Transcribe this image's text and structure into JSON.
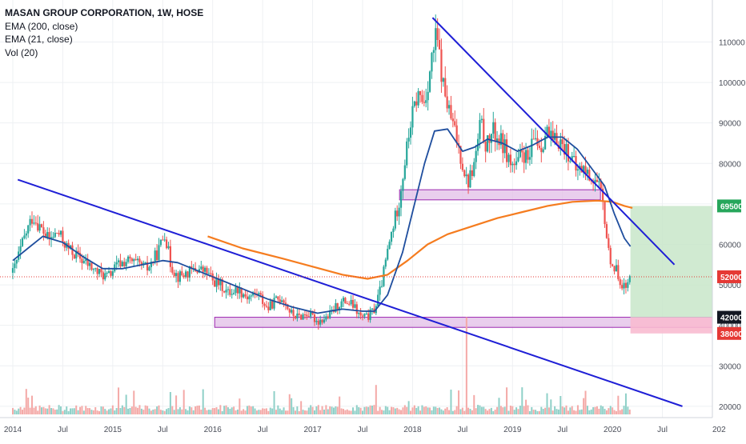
{
  "chart_data": {
    "type": "candlestick",
    "title": "MASAN GROUP CORPORATION, 1W, HOSE",
    "indicators": [
      "EMA (200, close)",
      "EMA (21, close)",
      "Vol (20)"
    ],
    "x_ticks": [
      "2014",
      "Jul",
      "2015",
      "Jul",
      "2016",
      "Jul",
      "2017",
      "Jul",
      "2018",
      "Jul",
      "2019",
      "Jul",
      "2020",
      "Jul",
      "202"
    ],
    "y_ticks": [
      20000,
      30000,
      40000,
      50000,
      60000,
      70000,
      80000,
      90000,
      100000,
      110000
    ],
    "ylim": [
      18000,
      118000
    ],
    "xlim": [
      2014.0,
      2021.0
    ],
    "price_labels": [
      {
        "value": 69500,
        "label": "69500",
        "color": "#26a65b"
      },
      {
        "value": 52000,
        "label": "52000",
        "color": "#e53935"
      },
      {
        "value": 42000,
        "label": "42000",
        "color": "#131722"
      },
      {
        "value": 38000,
        "label": "38000",
        "color": "#e53935"
      }
    ],
    "current_price": 52000,
    "colors": {
      "up": "#26a69a",
      "down": "#ef5350",
      "ema200": "#f57c1f",
      "ema21": "#1f4e9e",
      "trendline": "#1f1fd6",
      "zone_fill": "#e1bee7",
      "zone_stroke": "#9c27b0",
      "profit": "#c8e6c9",
      "loss": "#f8bbd0"
    },
    "price_path": [
      [
        2014.0,
        53000
      ],
      [
        2014.12,
        62000
      ],
      [
        2014.2,
        67000
      ],
      [
        2014.28,
        64000
      ],
      [
        2014.36,
        61000
      ],
      [
        2014.45,
        63000
      ],
      [
        2014.55,
        59000
      ],
      [
        2014.65,
        57000
      ],
      [
        2014.75,
        55000
      ],
      [
        2014.85,
        53000
      ],
      [
        2014.95,
        52000
      ],
      [
        2015.05,
        55000
      ],
      [
        2015.15,
        56000
      ],
      [
        2015.25,
        55000
      ],
      [
        2015.35,
        54000
      ],
      [
        2015.45,
        58000
      ],
      [
        2015.52,
        63000
      ],
      [
        2015.58,
        55000
      ],
      [
        2015.65,
        52000
      ],
      [
        2015.75,
        53000
      ],
      [
        2015.85,
        54000
      ],
      [
        2015.95,
        53000
      ],
      [
        2016.0,
        51000
      ],
      [
        2016.08,
        50000
      ],
      [
        2016.15,
        48000
      ],
      [
        2016.25,
        49000
      ],
      [
        2016.35,
        47000
      ],
      [
        2016.45,
        48000
      ],
      [
        2016.55,
        44000
      ],
      [
        2016.62,
        46000
      ],
      [
        2016.7,
        47000
      ],
      [
        2016.78,
        43000
      ],
      [
        2016.85,
        42000
      ],
      [
        2016.95,
        43000
      ],
      [
        2017.05,
        41000
      ],
      [
        2017.15,
        42000
      ],
      [
        2017.25,
        45000
      ],
      [
        2017.32,
        46000
      ],
      [
        2017.4,
        45000
      ],
      [
        2017.48,
        42000
      ],
      [
        2017.55,
        42000
      ],
      [
        2017.62,
        44000
      ],
      [
        2017.68,
        49000
      ],
      [
        2017.74,
        57000
      ],
      [
        2017.8,
        64000
      ],
      [
        2017.86,
        70000
      ],
      [
        2017.92,
        80000
      ],
      [
        2017.98,
        90000
      ],
      [
        2018.05,
        97000
      ],
      [
        2018.12,
        95000
      ],
      [
        2018.18,
        104000
      ],
      [
        2018.24,
        112000
      ],
      [
        2018.3,
        100000
      ],
      [
        2018.36,
        93000
      ],
      [
        2018.42,
        88000
      ],
      [
        2018.48,
        82000
      ],
      [
        2018.55,
        75000
      ],
      [
        2018.62,
        80000
      ],
      [
        2018.68,
        90000
      ],
      [
        2018.74,
        84000
      ],
      [
        2018.8,
        88000
      ],
      [
        2018.86,
        86000
      ],
      [
        2018.92,
        84000
      ],
      [
        2018.98,
        80000
      ],
      [
        2019.04,
        79000
      ],
      [
        2019.1,
        83000
      ],
      [
        2019.16,
        80000
      ],
      [
        2019.22,
        87000
      ],
      [
        2019.28,
        84000
      ],
      [
        2019.34,
        88000
      ],
      [
        2019.4,
        85000
      ],
      [
        2019.46,
        86000
      ],
      [
        2019.52,
        84000
      ],
      [
        2019.58,
        82000
      ],
      [
        2019.64,
        78000
      ],
      [
        2019.7,
        79000
      ],
      [
        2019.76,
        77000
      ],
      [
        2019.82,
        76000
      ],
      [
        2019.88,
        73000
      ],
      [
        2019.92,
        67000
      ],
      [
        2019.96,
        58000
      ],
      [
        2020.0,
        55000
      ],
      [
        2020.05,
        53000
      ],
      [
        2020.1,
        50000
      ],
      [
        2020.14,
        49000
      ],
      [
        2020.18,
        52000
      ]
    ],
    "ema200_path": [
      [
        2015.95,
        62000
      ],
      [
        2016.3,
        59000
      ],
      [
        2016.7,
        56500
      ],
      [
        2017.0,
        54500
      ],
      [
        2017.3,
        52500
      ],
      [
        2017.55,
        51500
      ],
      [
        2017.75,
        52500
      ],
      [
        2017.95,
        56000
      ],
      [
        2018.15,
        60000
      ],
      [
        2018.35,
        62500
      ],
      [
        2018.6,
        64500
      ],
      [
        2018.85,
        66500
      ],
      [
        2019.1,
        68000
      ],
      [
        2019.35,
        69500
      ],
      [
        2019.6,
        70500
      ],
      [
        2019.85,
        70800
      ],
      [
        2020.0,
        70500
      ],
      [
        2020.12,
        69500
      ],
      [
        2020.2,
        69000
      ]
    ],
    "ema21_path": [
      [
        2014.0,
        56000
      ],
      [
        2014.15,
        59000
      ],
      [
        2014.3,
        62000
      ],
      [
        2014.5,
        60500
      ],
      [
        2014.7,
        57000
      ],
      [
        2014.9,
        54000
      ],
      [
        2015.1,
        54000
      ],
      [
        2015.3,
        55000
      ],
      [
        2015.5,
        56000
      ],
      [
        2015.65,
        55500
      ],
      [
        2015.85,
        53500
      ],
      [
        2016.05,
        51500
      ],
      [
        2016.3,
        49000
      ],
      [
        2016.55,
        46500
      ],
      [
        2016.8,
        44500
      ],
      [
        2017.05,
        43000
      ],
      [
        2017.3,
        44000
      ],
      [
        2017.5,
        43500
      ],
      [
        2017.62,
        43500
      ],
      [
        2017.75,
        47500
      ],
      [
        2017.9,
        58000
      ],
      [
        2018.0,
        68000
      ],
      [
        2018.12,
        80000
      ],
      [
        2018.22,
        88000
      ],
      [
        2018.35,
        88500
      ],
      [
        2018.5,
        83000
      ],
      [
        2018.62,
        84000
      ],
      [
        2018.75,
        86000
      ],
      [
        2018.9,
        85000
      ],
      [
        2019.05,
        83000
      ],
      [
        2019.2,
        84500
      ],
      [
        2019.35,
        86500
      ],
      [
        2019.5,
        86500
      ],
      [
        2019.65,
        83500
      ],
      [
        2019.8,
        78500
      ],
      [
        2019.92,
        74500
      ],
      [
        2020.02,
        67500
      ],
      [
        2020.12,
        61500
      ],
      [
        2020.18,
        59500
      ]
    ],
    "trendlines": [
      {
        "name": "upper-resistance",
        "points": [
          [
            2018.2,
            116000
          ],
          [
            2020.62,
            55000
          ]
        ]
      },
      {
        "name": "lower-resistance",
        "points": [
          [
            2014.05,
            76000
          ],
          [
            2020.7,
            20000
          ]
        ]
      }
    ],
    "zones": [
      {
        "name": "upper-zone",
        "x": [
          2017.87,
          2019.88
        ],
        "y": [
          71000,
          73500
        ]
      },
      {
        "name": "lower-zone",
        "x": [
          2016.02,
          2021.0
        ],
        "y": [
          39500,
          42000
        ]
      }
    ],
    "position": {
      "x": [
        2020.18,
        2021.0
      ],
      "entry": 42000,
      "target": 69500,
      "stop": 38000
    },
    "volume_spikes": [
      [
        2018.54,
        42000
      ]
    ]
  }
}
